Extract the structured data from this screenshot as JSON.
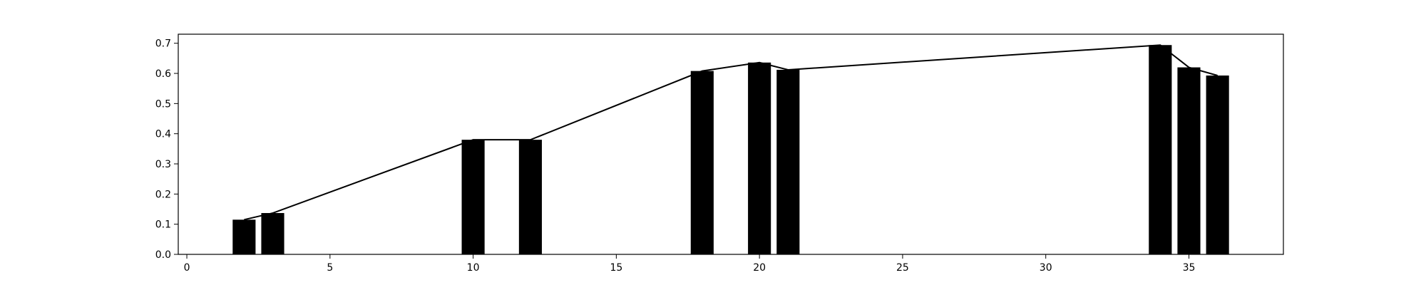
{
  "chart_data": {
    "type": "bar",
    "title": "",
    "xlabel": "",
    "ylabel": "",
    "xlim": [
      -0.3,
      38.3
    ],
    "ylim": [
      0,
      0.73
    ],
    "grid": false,
    "legend": "none",
    "bar_width": 0.8,
    "bar_color": "#000000",
    "line_color": "#000000",
    "x_ticks": [
      0,
      5,
      10,
      15,
      20,
      25,
      30,
      35
    ],
    "y_ticks": [
      0.0,
      0.1,
      0.2,
      0.3,
      0.4,
      0.5,
      0.6,
      0.7
    ],
    "x_tick_labels": [
      "0",
      "5",
      "10",
      "15",
      "20",
      "25",
      "30",
      "35"
    ],
    "y_tick_labels": [
      "0.0",
      "0.1",
      "0.2",
      "0.3",
      "0.4",
      "0.5",
      "0.6",
      "0.7"
    ],
    "x": [
      2,
      3,
      10,
      12,
      18,
      20,
      21,
      34,
      35,
      36
    ],
    "values": [
      0.115,
      0.137,
      0.38,
      0.38,
      0.608,
      0.636,
      0.612,
      0.694,
      0.62,
      0.593
    ]
  }
}
